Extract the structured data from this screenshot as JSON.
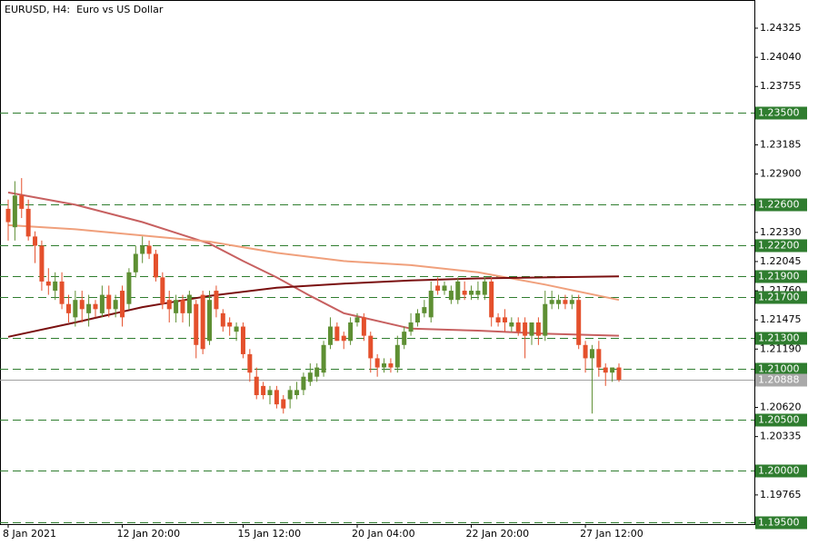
{
  "chart_data": {
    "type": "candlestick",
    "title": "EURUSD, H4:  Euro vs US Dollar",
    "categories": [
      "8 Jan 2021",
      null,
      null,
      null,
      null,
      null,
      null,
      null,
      null,
      null,
      null,
      null,
      null,
      null,
      null,
      null,
      null,
      "12 Jan 20:00",
      null,
      null,
      null,
      null,
      null,
      null,
      null,
      null,
      null,
      null,
      null,
      null,
      null,
      null,
      null,
      null,
      null,
      "15 Jan 12:00",
      null,
      null,
      null,
      null,
      null,
      null,
      null,
      null,
      null,
      null,
      null,
      null,
      null,
      null,
      null,
      null,
      "20 Jan 04:00",
      null,
      null,
      null,
      null,
      null,
      null,
      null,
      null,
      null,
      null,
      null,
      null,
      null,
      null,
      null,
      null,
      "22 Jan 20:00",
      null,
      null,
      null,
      null,
      null,
      null,
      null,
      null,
      null,
      null,
      null,
      null,
      null,
      null,
      null,
      null,
      "27 Jan 12:00",
      null,
      null,
      null,
      null,
      null
    ],
    "open": [
      1.2256,
      1.2238,
      1.2269,
      1.2256,
      1.2229,
      1.222,
      1.2185,
      1.2176,
      1.2185,
      1.2163,
      1.215,
      1.2167,
      1.2154,
      1.2163,
      1.2154,
      1.2172,
      1.2158,
      1.2176,
      1.2163,
      1.2194,
      1.2212,
      1.222,
      1.2212,
      1.2189,
      1.2167,
      1.2154,
      1.2167,
      1.2154,
      1.2163,
      1.2172,
      1.2127,
      1.2176,
      1.2154,
      1.2145,
      1.2136,
      1.2141,
      1.2114,
      1.2092,
      1.2083,
      1.2074,
      1.2079,
      1.207,
      1.207,
      1.2074,
      1.2079,
      1.2087,
      1.2092,
      1.2096,
      1.2123,
      1.2141,
      1.2132,
      1.2127,
      1.2145,
      1.215,
      1.2132,
      1.211,
      1.2101,
      1.2105,
      1.2101,
      1.2123,
      1.2136,
      1.2145,
      1.2154,
      1.215,
      1.2181,
      1.2176,
      1.2167,
      1.2167,
      1.2176,
      1.2172,
      1.2172,
      1.2172,
      1.2185,
      1.215,
      1.215,
      1.2141,
      1.2145,
      1.2145,
      1.2132,
      1.2145,
      1.2132,
      1.2163,
      1.2163,
      1.2167,
      1.2163,
      1.2167,
      1.2123,
      1.211,
      1.2119,
      1.2101,
      1.2096,
      1.2101
    ],
    "high": [
      1.2265,
      1.2283,
      1.2286,
      1.2265,
      1.2234,
      1.2225,
      1.2198,
      1.2194,
      1.2194,
      1.2172,
      1.2176,
      1.2176,
      1.2172,
      1.2167,
      1.2181,
      1.2181,
      1.2172,
      1.2181,
      1.2198,
      1.222,
      1.2229,
      1.2225,
      1.2216,
      1.2194,
      1.2176,
      1.2172,
      1.2172,
      1.2176,
      1.2167,
      1.2176,
      1.2176,
      1.2181,
      1.2158,
      1.215,
      1.2145,
      1.2145,
      1.2119,
      1.2101,
      1.2087,
      1.2083,
      1.2083,
      1.2074,
      1.2083,
      1.2087,
      1.2096,
      1.2105,
      1.2105,
      1.2127,
      1.215,
      1.2145,
      1.2136,
      1.215,
      1.2154,
      1.2154,
      1.2136,
      1.2114,
      1.211,
      1.211,
      1.2132,
      1.2141,
      1.2154,
      1.2158,
      1.2167,
      1.2185,
      1.2189,
      1.2185,
      1.2181,
      1.2189,
      1.2185,
      1.2181,
      1.2185,
      1.2189,
      1.2189,
      1.2154,
      1.2158,
      1.215,
      1.215,
      1.215,
      1.2145,
      1.215,
      1.2176,
      1.2176,
      1.2172,
      1.2172,
      1.2172,
      1.2172,
      1.2127,
      1.2123,
      1.2127,
      1.2105,
      1.2101,
      1.2105
    ],
    "low": [
      1.2225,
      1.2225,
      1.2247,
      1.2225,
      1.2203,
      1.2176,
      1.2172,
      1.2167,
      1.2158,
      1.2145,
      1.2141,
      1.2145,
      1.2141,
      1.215,
      1.215,
      1.215,
      1.215,
      1.2141,
      1.2158,
      1.2189,
      1.2203,
      1.2207,
      1.2185,
      1.2158,
      1.2145,
      1.2145,
      1.2145,
      1.2141,
      1.211,
      1.2114,
      1.2123,
      1.215,
      1.2136,
      1.2132,
      1.2127,
      1.211,
      1.2087,
      1.207,
      1.207,
      1.2065,
      1.2061,
      1.2056,
      1.2061,
      1.207,
      1.2074,
      1.2083,
      1.2087,
      1.2092,
      1.2119,
      1.2127,
      1.2119,
      1.2123,
      1.2141,
      1.2127,
      1.2096,
      1.2092,
      1.2096,
      1.2096,
      1.2096,
      1.2119,
      1.2132,
      1.2141,
      1.215,
      1.2145,
      1.2172,
      1.2172,
      1.2163,
      1.2163,
      1.2167,
      1.2167,
      1.2167,
      1.2167,
      1.2141,
      1.2141,
      1.2136,
      1.2136,
      1.2132,
      1.211,
      1.2123,
      1.2123,
      1.2127,
      1.2158,
      1.2158,
      1.2158,
      1.2158,
      1.2119,
      1.2096,
      1.2056,
      1.2092,
      1.2083,
      1.2087,
      1.2087
    ],
    "close": [
      1.2243,
      1.2269,
      1.2256,
      1.2229,
      1.222,
      1.2185,
      1.2181,
      1.2185,
      1.2163,
      1.2154,
      1.2167,
      1.2158,
      1.2163,
      1.2158,
      1.2172,
      1.2158,
      1.2167,
      1.215,
      1.2194,
      1.2212,
      1.222,
      1.2212,
      1.2189,
      1.2163,
      1.2158,
      1.2167,
      1.2154,
      1.2172,
      1.2123,
      1.2119,
      1.2167,
      1.2158,
      1.2141,
      1.2141,
      1.2141,
      1.2114,
      1.2096,
      1.2074,
      1.2074,
      1.2079,
      1.2065,
      1.2061,
      1.2079,
      1.2079,
      1.2092,
      1.2096,
      1.2101,
      1.2123,
      1.2141,
      1.2127,
      1.2127,
      1.2145,
      1.215,
      1.2132,
      1.211,
      1.2101,
      1.2105,
      1.2101,
      1.2123,
      1.2136,
      1.2145,
      1.2154,
      1.216,
      1.2176,
      1.2176,
      1.2181,
      1.2176,
      1.2185,
      1.2172,
      1.2176,
      1.2176,
      1.2185,
      1.215,
      1.2145,
      1.2145,
      1.2145,
      1.2136,
      1.2132,
      1.2145,
      1.2132,
      1.2163,
      1.2167,
      1.2167,
      1.2163,
      1.2167,
      1.2123,
      1.211,
      1.2119,
      1.2101,
      1.2096,
      1.2101,
      1.2089
    ],
    "up_color": "#5e8f33",
    "down_color": "#e4502c",
    "indicators": [
      {
        "color": "#c76060",
        "x": [
          0,
          10,
          20,
          30,
          35,
          40,
          45,
          50,
          60,
          70,
          80,
          91
        ],
        "values": [
          1.2272,
          1.226,
          1.2243,
          1.2222,
          1.2205,
          1.2189,
          1.2171,
          1.2154,
          1.2139,
          1.2137,
          1.2134,
          1.2132
        ]
      },
      {
        "color": "#f0a07c",
        "x": [
          0,
          10,
          20,
          30,
          40,
          50,
          60,
          70,
          80,
          91
        ],
        "values": [
          1.224,
          1.2236,
          1.223,
          1.2224,
          1.2213,
          1.2205,
          1.2201,
          1.2194,
          1.2182,
          1.2167
        ]
      },
      {
        "color": "#7a1010",
        "x": [
          0,
          10,
          20,
          30,
          40,
          50,
          60,
          70,
          80,
          91
        ],
        "values": [
          1.2131,
          1.2145,
          1.216,
          1.2171,
          1.2179,
          1.2183,
          1.2186,
          1.2188,
          1.2189,
          1.219
        ]
      }
    ],
    "ylim": [
      1.1948,
      1.246
    ],
    "yticks": [
      1.24325,
      {
        "value": 1.2404,
        "label": "1.24040"
      },
      1.23755,
      1.23185,
      {
        "value": 1.229,
        "label": "1.22900"
      },
      {
        "value": 1.2233,
        "label": "1.22330"
      },
      1.22045,
      {
        "value": 1.2176,
        "label": "1.21760"
      },
      1.21475,
      {
        "value": 1.2119,
        "label": "1.21190"
      },
      {
        "value": 1.2062,
        "label": "1.20620"
      },
      1.20335,
      1.19765
    ],
    "levels": [
      {
        "value": 1.235,
        "label": "1.23500"
      },
      {
        "value": 1.226,
        "label": "1.22600"
      },
      {
        "value": 1.222,
        "label": "1.22200"
      },
      {
        "value": 1.219,
        "label": "1.21900"
      },
      {
        "value": 1.217,
        "label": "1.21700"
      },
      {
        "value": 1.213,
        "label": "1.21300"
      },
      {
        "value": 1.21,
        "label": "1.21000"
      },
      {
        "value": 1.205,
        "label": "1.20500"
      },
      {
        "value": 1.2,
        "label": "1.20000"
      },
      {
        "value": 1.195,
        "label": "1.19500"
      }
    ],
    "level_color": "#2f7d2f",
    "current_price": 1.20888
  }
}
